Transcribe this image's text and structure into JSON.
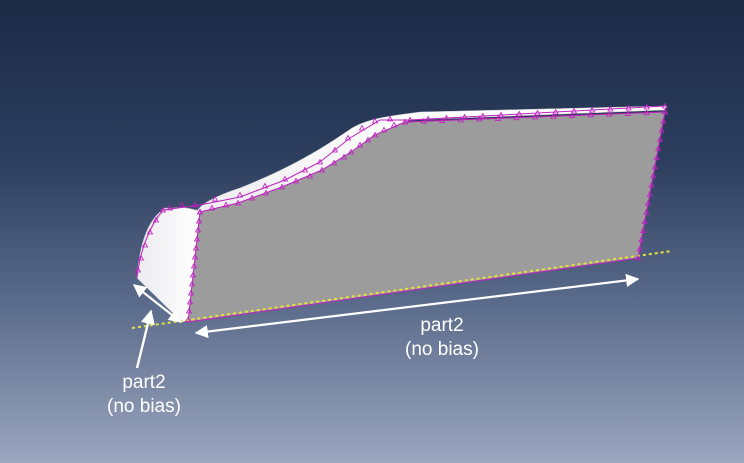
{
  "annotations": {
    "length_edge": {
      "line1": "part2",
      "line2": "(no bias)"
    },
    "width_edge": {
      "line1": "part2",
      "line2": "(no bias)"
    }
  },
  "colors": {
    "background_top": "#1b2a45",
    "background_bottom": "#9ba6bf",
    "side_face": "#9c9c9c",
    "top_surface": "#f2f2f4",
    "seed_marks": "#c020c0",
    "selected_edge": "#e8e23a",
    "arrows": "#ffffff"
  }
}
